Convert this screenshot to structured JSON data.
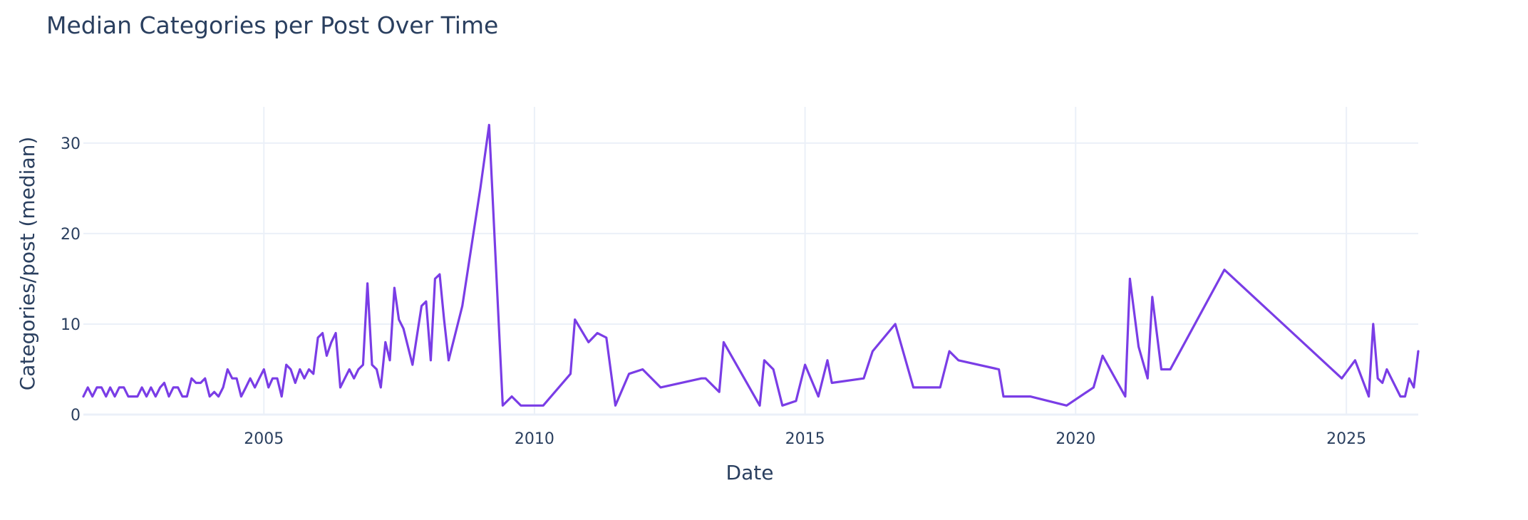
{
  "chart_data": {
    "type": "line",
    "title": "Median Categories per Post Over Time",
    "xlabel": "Date",
    "ylabel": "Categories/post (median)",
    "xlim": [
      "2001-09-01",
      "2026-05-01"
    ],
    "ylim": [
      0,
      34
    ],
    "x_ticks": [
      "2005",
      "2010",
      "2015",
      "2020",
      "2025"
    ],
    "y_ticks": [
      0,
      10,
      20,
      30
    ],
    "grid": true,
    "legend": "none",
    "line_color": "#7a3de6",
    "series": [
      {
        "x": [
          "2001-09-01",
          "2001-10-01",
          "2001-11-01",
          "2001-12-01",
          "2002-01-01",
          "2002-02-01",
          "2002-03-01",
          "2002-04-01",
          "2002-05-01",
          "2002-06-01",
          "2002-07-01",
          "2002-09-01",
          "2002-10-01",
          "2002-11-01",
          "2002-12-01",
          "2003-01-01",
          "2003-02-01",
          "2003-03-01",
          "2003-04-01",
          "2003-05-01",
          "2003-06-01",
          "2003-07-01",
          "2003-08-01",
          "2003-09-01",
          "2003-10-01",
          "2003-11-01",
          "2003-12-01",
          "2004-01-01",
          "2004-02-01",
          "2004-03-01",
          "2004-04-01",
          "2004-05-01",
          "2004-06-01",
          "2004-07-01",
          "2004-08-01",
          "2004-09-01",
          "2004-10-01",
          "2004-11-01",
          "2004-12-01",
          "2005-01-01",
          "2005-02-01",
          "2005-03-01",
          "2005-04-01",
          "2005-05-01",
          "2005-06-01",
          "2005-07-01",
          "2005-08-01",
          "2005-09-01",
          "2005-10-01",
          "2005-11-01",
          "2005-12-01",
          "2006-01-01",
          "2006-02-01",
          "2006-03-01",
          "2006-04-01",
          "2006-05-01",
          "2006-06-01",
          "2006-07-01",
          "2006-08-01",
          "2006-09-01",
          "2006-10-01",
          "2006-11-01",
          "2006-12-01",
          "2007-01-01",
          "2007-02-01",
          "2007-03-01",
          "2007-04-01",
          "2007-05-01",
          "2007-06-01",
          "2007-07-01",
          "2007-08-01",
          "2007-10-01",
          "2007-12-01",
          "2008-01-01",
          "2008-02-01",
          "2008-03-01",
          "2008-04-01",
          "2008-05-01",
          "2008-06-01",
          "2008-09-01",
          "2009-01-01",
          "2009-03-01",
          "2009-06-01",
          "2009-08-01",
          "2009-10-01",
          "2010-03-01",
          "2010-09-01",
          "2010-10-01",
          "2011-01-01",
          "2011-03-01",
          "2011-05-01",
          "2011-07-01",
          "2011-10-01",
          "2012-01-01",
          "2012-05-01",
          "2013-02-01",
          "2013-03-01",
          "2013-06-01",
          "2013-07-01",
          "2014-03-01",
          "2014-04-01",
          "2014-06-01",
          "2014-08-01",
          "2014-11-01",
          "2015-01-01",
          "2015-04-01",
          "2015-06-01",
          "2015-07-01",
          "2016-02-01",
          "2016-04-01",
          "2016-09-01",
          "2017-01-01",
          "2017-07-01",
          "2017-09-01",
          "2017-11-01",
          "2018-08-01",
          "2018-09-01",
          "2019-03-01",
          "2019-11-01",
          "2020-05-01",
          "2020-07-01",
          "2020-12-01",
          "2021-01-01",
          "2021-03-01",
          "2021-05-01",
          "2021-06-01",
          "2021-08-01",
          "2021-10-01",
          "2022-10-01",
          "2024-12-01",
          "2025-03-01",
          "2025-06-01",
          "2025-07-01",
          "2025-08-01",
          "2025-09-01",
          "2025-10-01",
          "2026-01-01",
          "2026-02-01",
          "2026-03-01",
          "2026-04-01",
          "2026-05-01"
        ],
        "y": [
          2,
          3,
          2,
          3,
          3,
          2,
          3,
          2,
          3,
          3,
          2,
          2,
          3,
          2,
          3,
          2,
          3,
          3.5,
          2,
          3,
          3,
          2,
          2,
          4,
          3.5,
          3.5,
          4,
          2,
          2.5,
          2,
          3,
          5,
          4,
          4,
          2,
          3,
          4,
          3,
          4,
          5,
          3,
          4,
          4,
          2,
          5.5,
          5,
          3.5,
          5,
          4,
          5,
          4.5,
          8.5,
          9,
          6.5,
          8,
          9,
          3,
          4,
          5,
          4,
          5,
          5.5,
          14.5,
          5.5,
          5,
          3,
          8,
          6,
          14,
          10.5,
          9.5,
          5.5,
          12,
          12.5,
          6,
          15,
          15.5,
          10.5,
          6,
          12,
          25,
          32,
          1,
          2,
          1,
          1,
          4.5,
          10.5,
          8,
          9,
          8.5,
          1,
          4.5,
          5,
          3,
          4,
          4,
          2.5,
          8,
          1,
          6,
          5,
          1,
          1.5,
          5.5,
          2,
          6,
          3.5,
          4,
          7,
          10,
          3,
          3,
          7,
          6,
          5,
          2,
          2,
          1,
          3,
          6.5,
          2,
          15,
          7.5,
          4,
          13,
          5,
          5,
          16,
          4,
          6,
          2,
          10,
          4,
          3.5,
          5,
          2,
          2,
          4,
          3,
          7
        ]
      }
    ]
  }
}
